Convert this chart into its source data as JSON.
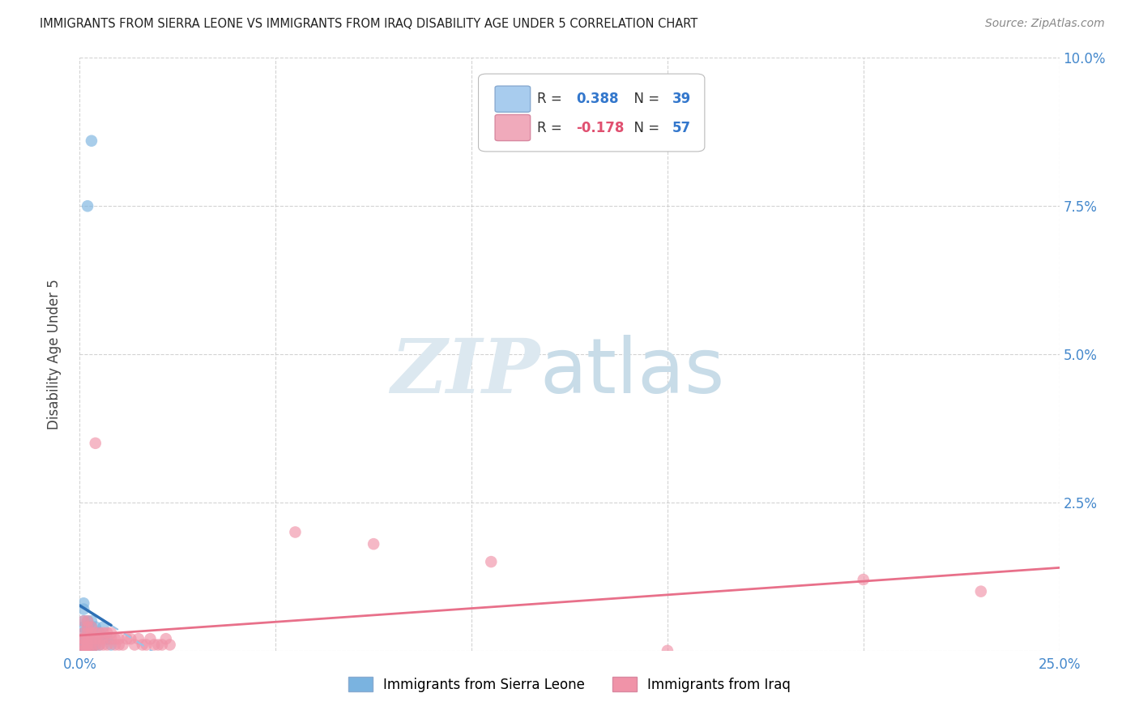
{
  "title": "IMMIGRANTS FROM SIERRA LEONE VS IMMIGRANTS FROM IRAQ DISABILITY AGE UNDER 5 CORRELATION CHART",
  "source": "Source: ZipAtlas.com",
  "ylabel": "Disability Age Under 5",
  "xlim": [
    0.0,
    0.25
  ],
  "ylim": [
    0.0,
    0.1
  ],
  "sierra_leone_color": "#7ab3e0",
  "iraq_color": "#f093a8",
  "sierra_leone_line_color": "#2d6fb5",
  "iraq_line_color": "#e8708a",
  "sierra_leone_dashed_color": "#9dc3e6",
  "background_color": "#ffffff",
  "grid_color": "#c8c8c8",
  "sl_R": 0.388,
  "sl_N": 39,
  "iq_R": -0.178,
  "iq_N": 57,
  "sierra_leone_points": [
    [
      0.001,
      0.0
    ],
    [
      0.001,
      0.0
    ],
    [
      0.001,
      0.0
    ],
    [
      0.001,
      0.001
    ],
    [
      0.001,
      0.001
    ],
    [
      0.001,
      0.002
    ],
    [
      0.001,
      0.002
    ],
    [
      0.001,
      0.003
    ],
    [
      0.001,
      0.004
    ],
    [
      0.001,
      0.005
    ],
    [
      0.001,
      0.007
    ],
    [
      0.001,
      0.008
    ],
    [
      0.002,
      0.0
    ],
    [
      0.002,
      0.001
    ],
    [
      0.002,
      0.001
    ],
    [
      0.002,
      0.002
    ],
    [
      0.002,
      0.002
    ],
    [
      0.002,
      0.003
    ],
    [
      0.002,
      0.004
    ],
    [
      0.002,
      0.005
    ],
    [
      0.003,
      0.0
    ],
    [
      0.003,
      0.001
    ],
    [
      0.003,
      0.002
    ],
    [
      0.003,
      0.003
    ],
    [
      0.003,
      0.004
    ],
    [
      0.003,
      0.005
    ],
    [
      0.004,
      0.001
    ],
    [
      0.004,
      0.002
    ],
    [
      0.004,
      0.003
    ],
    [
      0.004,
      0.004
    ],
    [
      0.005,
      0.001
    ],
    [
      0.005,
      0.002
    ],
    [
      0.005,
      0.003
    ],
    [
      0.006,
      0.002
    ],
    [
      0.006,
      0.004
    ],
    [
      0.007,
      0.002
    ],
    [
      0.008,
      0.001
    ],
    [
      0.002,
      0.075
    ],
    [
      0.003,
      0.086
    ]
  ],
  "iraq_points": [
    [
      0.001,
      0.0
    ],
    [
      0.001,
      0.0
    ],
    [
      0.001,
      0.001
    ],
    [
      0.001,
      0.001
    ],
    [
      0.001,
      0.002
    ],
    [
      0.001,
      0.002
    ],
    [
      0.001,
      0.003
    ],
    [
      0.001,
      0.005
    ],
    [
      0.002,
      0.0
    ],
    [
      0.002,
      0.001
    ],
    [
      0.002,
      0.001
    ],
    [
      0.002,
      0.002
    ],
    [
      0.002,
      0.003
    ],
    [
      0.002,
      0.004
    ],
    [
      0.002,
      0.005
    ],
    [
      0.003,
      0.0
    ],
    [
      0.003,
      0.001
    ],
    [
      0.003,
      0.002
    ],
    [
      0.003,
      0.003
    ],
    [
      0.003,
      0.004
    ],
    [
      0.004,
      0.001
    ],
    [
      0.004,
      0.002
    ],
    [
      0.004,
      0.003
    ],
    [
      0.004,
      0.035
    ],
    [
      0.005,
      0.001
    ],
    [
      0.005,
      0.002
    ],
    [
      0.005,
      0.003
    ],
    [
      0.006,
      0.001
    ],
    [
      0.006,
      0.002
    ],
    [
      0.006,
      0.003
    ],
    [
      0.007,
      0.001
    ],
    [
      0.007,
      0.003
    ],
    [
      0.008,
      0.002
    ],
    [
      0.008,
      0.003
    ],
    [
      0.009,
      0.001
    ],
    [
      0.009,
      0.002
    ],
    [
      0.01,
      0.001
    ],
    [
      0.01,
      0.002
    ],
    [
      0.011,
      0.001
    ],
    [
      0.012,
      0.002
    ],
    [
      0.013,
      0.002
    ],
    [
      0.014,
      0.001
    ],
    [
      0.015,
      0.002
    ],
    [
      0.016,
      0.001
    ],
    [
      0.017,
      0.001
    ],
    [
      0.018,
      0.002
    ],
    [
      0.019,
      0.001
    ],
    [
      0.02,
      0.001
    ],
    [
      0.021,
      0.001
    ],
    [
      0.022,
      0.002
    ],
    [
      0.023,
      0.001
    ],
    [
      0.105,
      0.015
    ],
    [
      0.055,
      0.02
    ],
    [
      0.075,
      0.018
    ],
    [
      0.2,
      0.012
    ],
    [
      0.23,
      0.01
    ],
    [
      0.15,
      0.0
    ]
  ],
  "watermark_zip": "ZIP",
  "watermark_atlas": "atlas",
  "watermark_color": "#dce8f0"
}
